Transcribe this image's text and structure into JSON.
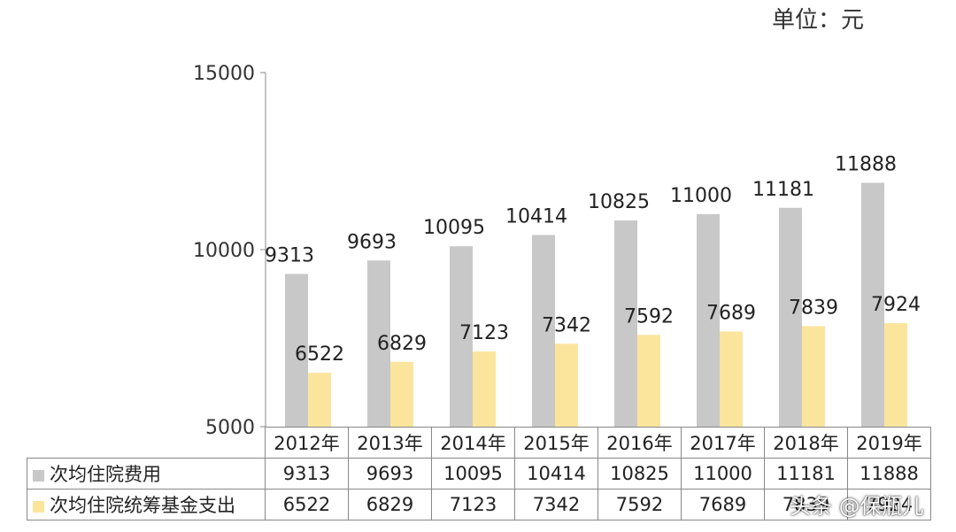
{
  "unit_label": "单位：元",
  "watermark": "头条 @保瓶儿",
  "colors": {
    "series1": "#c8c8c8",
    "series2": "#fbe59d",
    "axis": "#888888",
    "text": "#222222"
  },
  "chart_data": {
    "type": "bar",
    "categories": [
      "2012年",
      "2013年",
      "2014年",
      "2015年",
      "2016年",
      "2017年",
      "2018年",
      "2019年"
    ],
    "series": [
      {
        "name": "次均住院费用",
        "values": [
          9313,
          9693,
          10095,
          10414,
          10825,
          11000,
          11181,
          11888
        ]
      },
      {
        "name": "次均住院统筹基金支出",
        "values": [
          6522,
          6829,
          7123,
          7342,
          7592,
          7689,
          7839,
          7924
        ]
      }
    ],
    "ylim": [
      5000,
      15000
    ],
    "yticks": [
      "5000",
      "10000",
      "15000"
    ],
    "data_table": true,
    "grid": false
  }
}
